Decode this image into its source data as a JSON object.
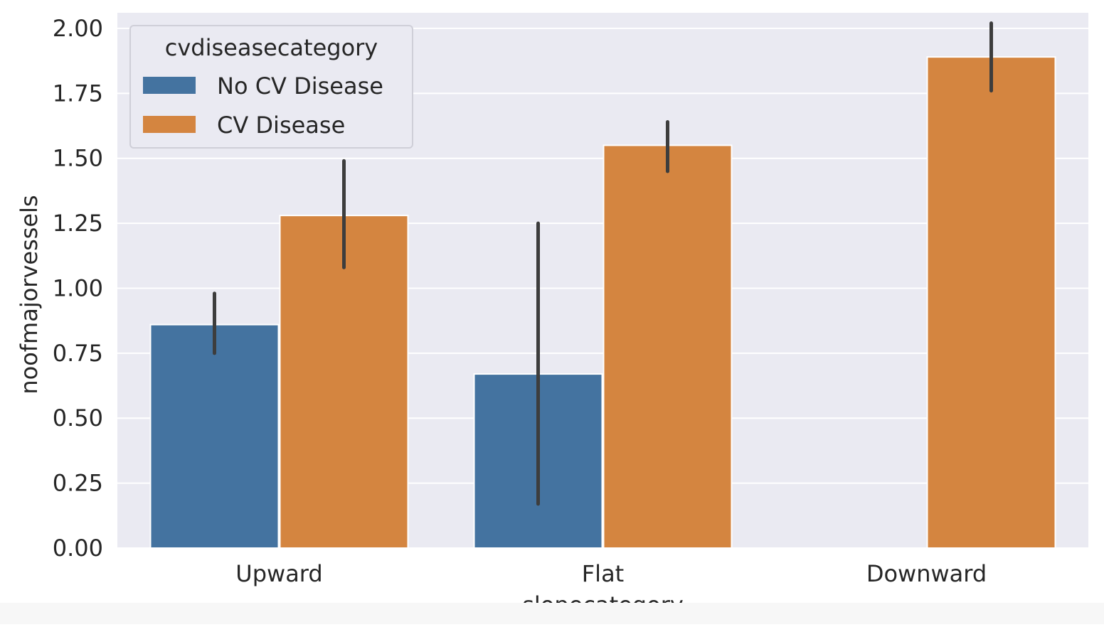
{
  "chart_data": {
    "type": "bar",
    "title": "",
    "xlabel": "slopecategory",
    "ylabel": "noofmajorvessels",
    "categories": [
      "Upward",
      "Flat",
      "Downward"
    ],
    "ylim": [
      0,
      2.06
    ],
    "yticks": [
      "0.00",
      "0.25",
      "0.50",
      "0.75",
      "1.00",
      "1.25",
      "1.50",
      "1.75",
      "2.00"
    ],
    "grid": true,
    "legend": {
      "title": "cvdiseasecategory",
      "placement": "top-left"
    },
    "series": [
      {
        "name": "No CV Disease",
        "color": "#4473A0",
        "values": [
          0.86,
          0.67,
          null
        ],
        "ci_low": [
          0.75,
          0.17,
          null
        ],
        "ci_high": [
          0.98,
          1.25,
          null
        ]
      },
      {
        "name": "CV Disease",
        "color": "#D48540",
        "values": [
          1.28,
          1.55,
          1.89
        ],
        "ci_low": [
          1.08,
          1.45,
          1.76
        ],
        "ci_high": [
          1.49,
          1.64,
          2.02
        ]
      }
    ],
    "colors": {
      "plot_background": "#EAEAF2",
      "grid": "#FFFFFF",
      "error_bar": "#3D3D3D"
    }
  }
}
